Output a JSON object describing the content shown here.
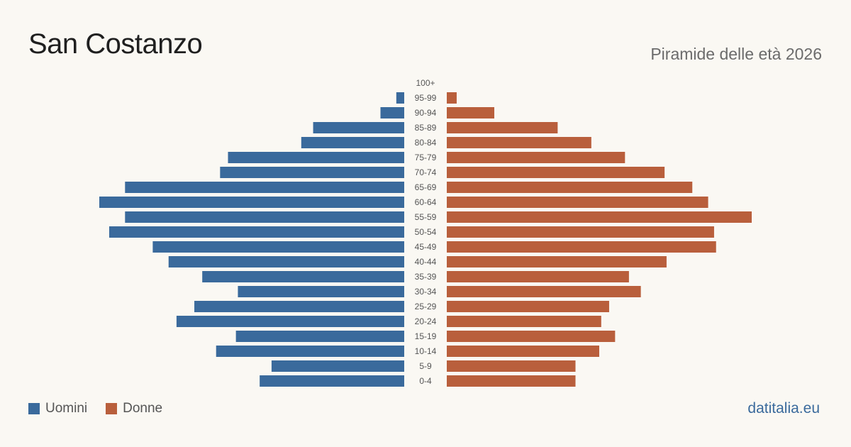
{
  "title": "San Costanzo",
  "subtitle": "Piramide delle età 2026",
  "brand": "datitalia.eu",
  "colors": {
    "male": "#3a6a9c",
    "female": "#b95f3c",
    "background": "#faf8f3"
  },
  "legend": [
    {
      "label": "Uomini",
      "color": "#3a6a9c"
    },
    {
      "label": "Donne",
      "color": "#b95f3c"
    }
  ],
  "chart_data": {
    "type": "bar",
    "orientation": "horizontal-pyramid",
    "categories": [
      "100+",
      "95-99",
      "90-94",
      "85-89",
      "80-84",
      "75-79",
      "70-74",
      "65-69",
      "60-64",
      "55-59",
      "50-54",
      "45-49",
      "40-44",
      "35-39",
      "30-34",
      "25-29",
      "20-24",
      "15-19",
      "10-14",
      "5-9",
      "0-4"
    ],
    "series": [
      {
        "name": "Uomini",
        "values": [
          0,
          4,
          12,
          46,
          52,
          89,
          93,
          141,
          154,
          141,
          149,
          127,
          119,
          102,
          84,
          106,
          115,
          85,
          95,
          67,
          73
        ]
      },
      {
        "name": "Donne",
        "values": [
          0,
          5,
          24,
          56,
          73,
          90,
          110,
          124,
          132,
          154,
          135,
          136,
          111,
          92,
          98,
          82,
          78,
          85,
          77,
          65,
          65
        ]
      }
    ],
    "legend_position": "bottom-left",
    "grid": false
  }
}
